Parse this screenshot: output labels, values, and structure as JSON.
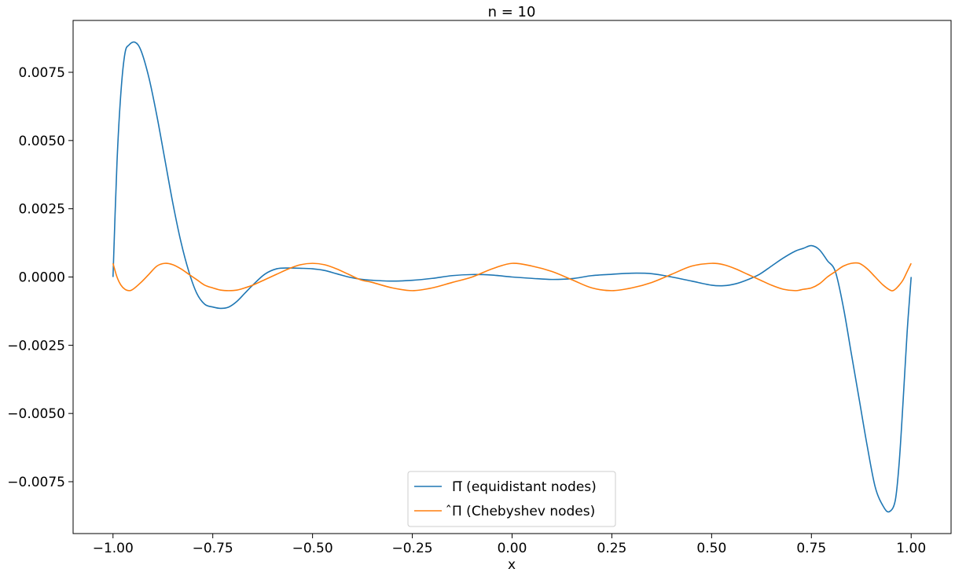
{
  "chart_data": {
    "type": "line",
    "title": "n = 10",
    "xlabel": "x",
    "ylabel": "",
    "xlim": [
      -1.1,
      1.1
    ],
    "ylim": [
      -0.0094,
      0.0094
    ],
    "x_ticks": [
      -1.0,
      -0.75,
      -0.5,
      -0.25,
      0.0,
      0.25,
      0.5,
      0.75,
      1.0
    ],
    "x_tick_labels": [
      "−1.00",
      "−0.75",
      "−0.50",
      "−0.25",
      "0.00",
      "0.25",
      "0.50",
      "0.75",
      "1.00"
    ],
    "y_ticks": [
      0.0075,
      0.005,
      0.0025,
      0.0,
      -0.0025,
      -0.005,
      -0.0075
    ],
    "y_tick_labels": [
      "0.0075",
      "0.0050",
      "0.0025",
      "0.0000",
      "−0.0025",
      "−0.0050",
      "−0.0075"
    ],
    "grid": false,
    "legend_position": "lower center",
    "series": [
      {
        "name": "Π̅ (equidistant nodes)",
        "color": "#1f77b4",
        "x": [
          -1.0,
          -0.99,
          -0.98,
          -0.97,
          -0.96,
          -0.945,
          -0.93,
          -0.91,
          -0.89,
          -0.87,
          -0.85,
          -0.83,
          -0.81,
          -0.79,
          -0.77,
          -0.75,
          -0.73,
          -0.71,
          -0.69,
          -0.67,
          -0.65,
          -0.62,
          -0.59,
          -0.56,
          -0.53,
          -0.5,
          -0.47,
          -0.44,
          -0.41,
          -0.38,
          -0.35,
          -0.3,
          -0.25,
          -0.2,
          -0.15,
          -0.1,
          -0.05,
          0.0,
          0.05,
          0.1,
          0.15,
          0.2,
          0.25,
          0.3,
          0.35,
          0.4,
          0.45,
          0.5,
          0.53,
          0.56,
          0.59,
          0.62,
          0.65,
          0.68,
          0.71,
          0.73,
          0.75,
          0.77,
          0.79,
          0.81,
          0.83,
          0.85,
          0.87,
          0.89,
          0.91,
          0.93,
          0.945,
          0.96,
          0.97,
          0.98,
          0.99,
          1.0
        ],
        "y": [
          0.0,
          0.0042,
          0.0068,
          0.0082,
          0.0085,
          0.0086,
          0.0083,
          0.0073,
          0.0059,
          0.0043,
          0.0027,
          0.0013,
          0.0002,
          -0.0006,
          -0.001,
          -0.0011,
          -0.00115,
          -0.0011,
          -0.0009,
          -0.0006,
          -0.0003,
          0.0001,
          0.0003,
          0.00033,
          0.00032,
          0.0003,
          0.00024,
          0.00012,
          0.0,
          -8e-05,
          -0.00012,
          -0.00015,
          -0.00012,
          -5e-05,
          5e-05,
          9e-05,
          7e-05,
          0.0,
          -5e-05,
          -9e-05,
          -6e-05,
          5e-05,
          0.0001,
          0.00014,
          0.00012,
          0.0,
          -0.00015,
          -0.0003,
          -0.00032,
          -0.00025,
          -0.0001,
          0.0001,
          0.0004,
          0.0007,
          0.00095,
          0.00105,
          0.00115,
          0.001,
          0.0006,
          0.0002,
          -0.0011,
          -0.0028,
          -0.0045,
          -0.0062,
          -0.0077,
          -0.0084,
          -0.0086,
          -0.0082,
          -0.0068,
          -0.0045,
          -0.002,
          0.0
        ]
      },
      {
        "name": "̂Π (Chebyshev nodes)",
        "color": "#ff7f0e",
        "x": [
          -1.0,
          -0.99,
          -0.98,
          -0.97,
          -0.96,
          -0.95,
          -0.93,
          -0.91,
          -0.89,
          -0.87,
          -0.85,
          -0.83,
          -0.81,
          -0.79,
          -0.77,
          -0.75,
          -0.73,
          -0.71,
          -0.69,
          -0.67,
          -0.65,
          -0.62,
          -0.59,
          -0.56,
          -0.53,
          -0.5,
          -0.47,
          -0.44,
          -0.41,
          -0.38,
          -0.35,
          -0.3,
          -0.25,
          -0.2,
          -0.15,
          -0.1,
          -0.05,
          0.0,
          0.05,
          0.1,
          0.15,
          0.2,
          0.25,
          0.3,
          0.35,
          0.4,
          0.45,
          0.5,
          0.53,
          0.56,
          0.59,
          0.62,
          0.65,
          0.68,
          0.71,
          0.73,
          0.75,
          0.77,
          0.79,
          0.81,
          0.83,
          0.85,
          0.87,
          0.89,
          0.91,
          0.93,
          0.95,
          0.96,
          0.97,
          0.98,
          0.99,
          1.0
        ],
        "y": [
          0.0005,
          0.0,
          -0.0003,
          -0.00045,
          -0.0005,
          -0.00045,
          -0.0002,
          0.0001,
          0.0004,
          0.0005,
          0.00045,
          0.0003,
          0.0001,
          -0.0001,
          -0.0003,
          -0.0004,
          -0.00048,
          -0.0005,
          -0.00048,
          -0.0004,
          -0.0003,
          -0.0001,
          0.0001,
          0.0003,
          0.00045,
          0.0005,
          0.00045,
          0.0003,
          0.0001,
          -0.0001,
          -0.0002,
          -0.0004,
          -0.0005,
          -0.0004,
          -0.0002,
          0.0,
          0.0003,
          0.0005,
          0.0004,
          0.0002,
          -0.0001,
          -0.0004,
          -0.0005,
          -0.0004,
          -0.0002,
          0.0001,
          0.0004,
          0.0005,
          0.00045,
          0.0003,
          0.0001,
          -0.0001,
          -0.0003,
          -0.00045,
          -0.0005,
          -0.00045,
          -0.0004,
          -0.00025,
          0.0,
          0.0002,
          0.0004,
          0.0005,
          0.0005,
          0.0003,
          0.0,
          -0.0003,
          -0.0005,
          -0.00045,
          -0.0003,
          -0.0001,
          0.0002,
          0.0005
        ]
      }
    ]
  }
}
